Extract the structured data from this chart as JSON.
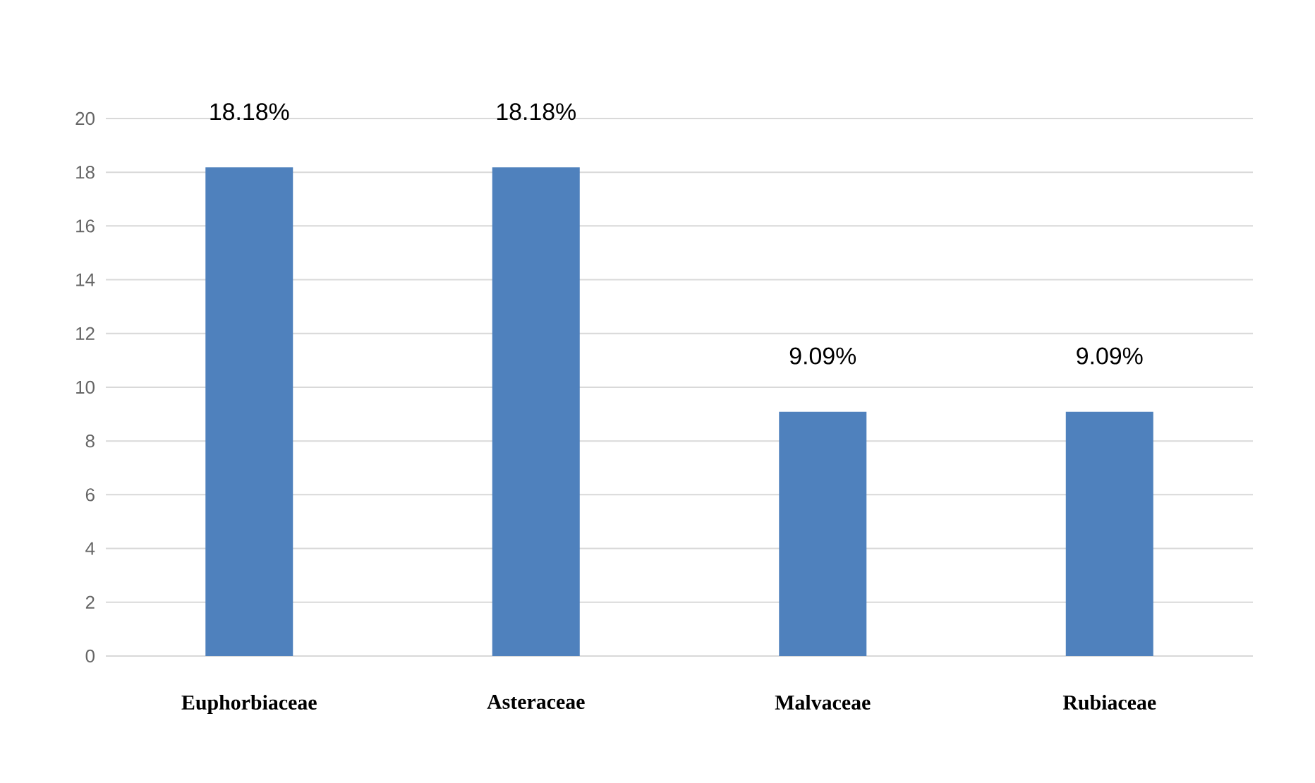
{
  "chart_data": {
    "type": "bar",
    "categories": [
      "Euphorbiaceae",
      "Asteraceae",
      "Malvaceae",
      "Rubiaceae"
    ],
    "values": [
      18.18,
      18.18,
      9.09,
      9.09
    ],
    "value_labels": [
      "18.18%",
      "18.18%",
      "9.09%",
      "9.09%"
    ],
    "color": "#4f81bd",
    "ylim": [
      0,
      20
    ],
    "yticks": [
      0,
      2,
      4,
      6,
      8,
      10,
      12,
      14,
      16,
      18,
      20
    ],
    "grid": "y"
  }
}
